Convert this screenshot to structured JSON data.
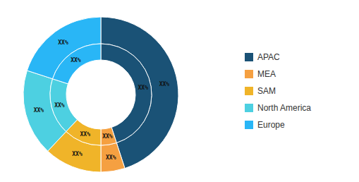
{
  "chart_data": {
    "type": "pie",
    "categories": [
      "APAC",
      "MEA",
      "SAM",
      "North America",
      "Europe"
    ],
    "values": [
      45,
      5,
      12,
      18,
      20
    ],
    "value_labels": [
      "XX%",
      "XX%",
      "XX%",
      "XX%",
      "XX%"
    ],
    "colors": [
      "#1a5276",
      "#f5a041",
      "#f0b429",
      "#4dd0e1",
      "#29b6f6"
    ],
    "legend": "right"
  }
}
